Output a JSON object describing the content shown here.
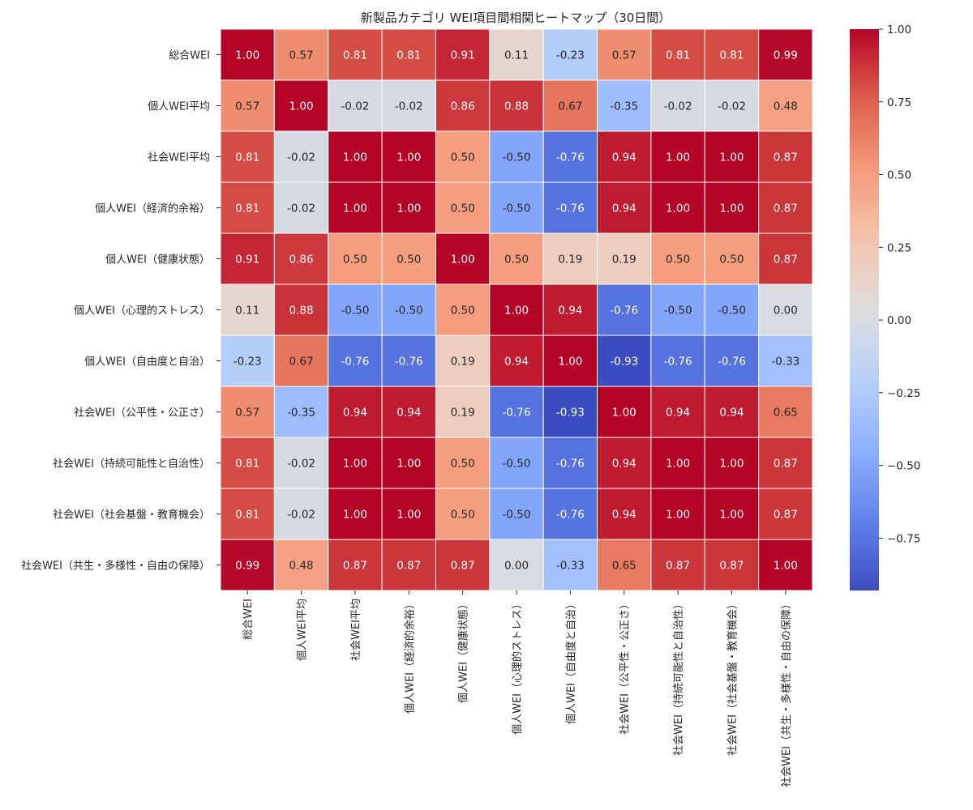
{
  "chart_data": {
    "type": "heatmap",
    "title": "新製品カテゴリ WEI項目間相関ヒートマップ（30日間）",
    "xlabel": "",
    "ylabel": "",
    "labels": [
      "総合WEI",
      "個人WEI平均",
      "社会WEI平均",
      "個人WEI（経済的余裕）",
      "個人WEI（健康状態）",
      "個人WEI（心理的ストレス）",
      "個人WEI（自由度と自治）",
      "社会WEI（公平性・公正さ）",
      "社会WEI（持続可能性と自治性）",
      "社会WEI（社会基盤・教育機会）",
      "社会WEI（共生・多様性・自由の保障）"
    ],
    "matrix": [
      [
        1.0,
        0.57,
        0.81,
        0.81,
        0.91,
        0.11,
        -0.23,
        0.57,
        0.81,
        0.81,
        0.99
      ],
      [
        0.57,
        1.0,
        -0.02,
        -0.02,
        0.86,
        0.88,
        0.67,
        -0.35,
        -0.02,
        -0.02,
        0.48
      ],
      [
        0.81,
        -0.02,
        1.0,
        1.0,
        0.5,
        -0.5,
        -0.76,
        0.94,
        1.0,
        1.0,
        0.87
      ],
      [
        0.81,
        -0.02,
        1.0,
        1.0,
        0.5,
        -0.5,
        -0.76,
        0.94,
        1.0,
        1.0,
        0.87
      ],
      [
        0.91,
        0.86,
        0.5,
        0.5,
        1.0,
        0.5,
        0.19,
        0.19,
        0.5,
        0.5,
        0.87
      ],
      [
        0.11,
        0.88,
        -0.5,
        -0.5,
        0.5,
        1.0,
        0.94,
        -0.76,
        -0.5,
        -0.5,
        0.0
      ],
      [
        -0.23,
        0.67,
        -0.76,
        -0.76,
        0.19,
        0.94,
        1.0,
        -0.93,
        -0.76,
        -0.76,
        -0.33
      ],
      [
        0.57,
        -0.35,
        0.94,
        0.94,
        0.19,
        -0.76,
        -0.93,
        1.0,
        0.94,
        0.94,
        0.65
      ],
      [
        0.81,
        -0.02,
        1.0,
        1.0,
        0.5,
        -0.5,
        -0.76,
        0.94,
        1.0,
        1.0,
        0.87
      ],
      [
        0.81,
        -0.02,
        1.0,
        1.0,
        0.5,
        -0.5,
        -0.76,
        0.94,
        1.0,
        1.0,
        0.87
      ],
      [
        0.99,
        0.48,
        0.87,
        0.87,
        0.87,
        0.0,
        -0.33,
        0.65,
        0.87,
        0.87,
        1.0
      ]
    ],
    "colormap": "coolwarm",
    "vmin": -0.93,
    "vmax": 1.0,
    "colorbar_ticks": [
      1.0,
      0.75,
      0.5,
      0.25,
      0.0,
      -0.25,
      -0.5,
      -0.75
    ],
    "colorbar_tick_labels": [
      "1.00",
      "0.75",
      "0.50",
      "0.25",
      "0.00",
      "−0.25",
      "−0.50",
      "−0.75"
    ],
    "annotation_format": "0.00",
    "annotation_dark_color": "#262626",
    "annotation_light_color": "#ffffff",
    "cell_border_color": "#ffffff"
  }
}
